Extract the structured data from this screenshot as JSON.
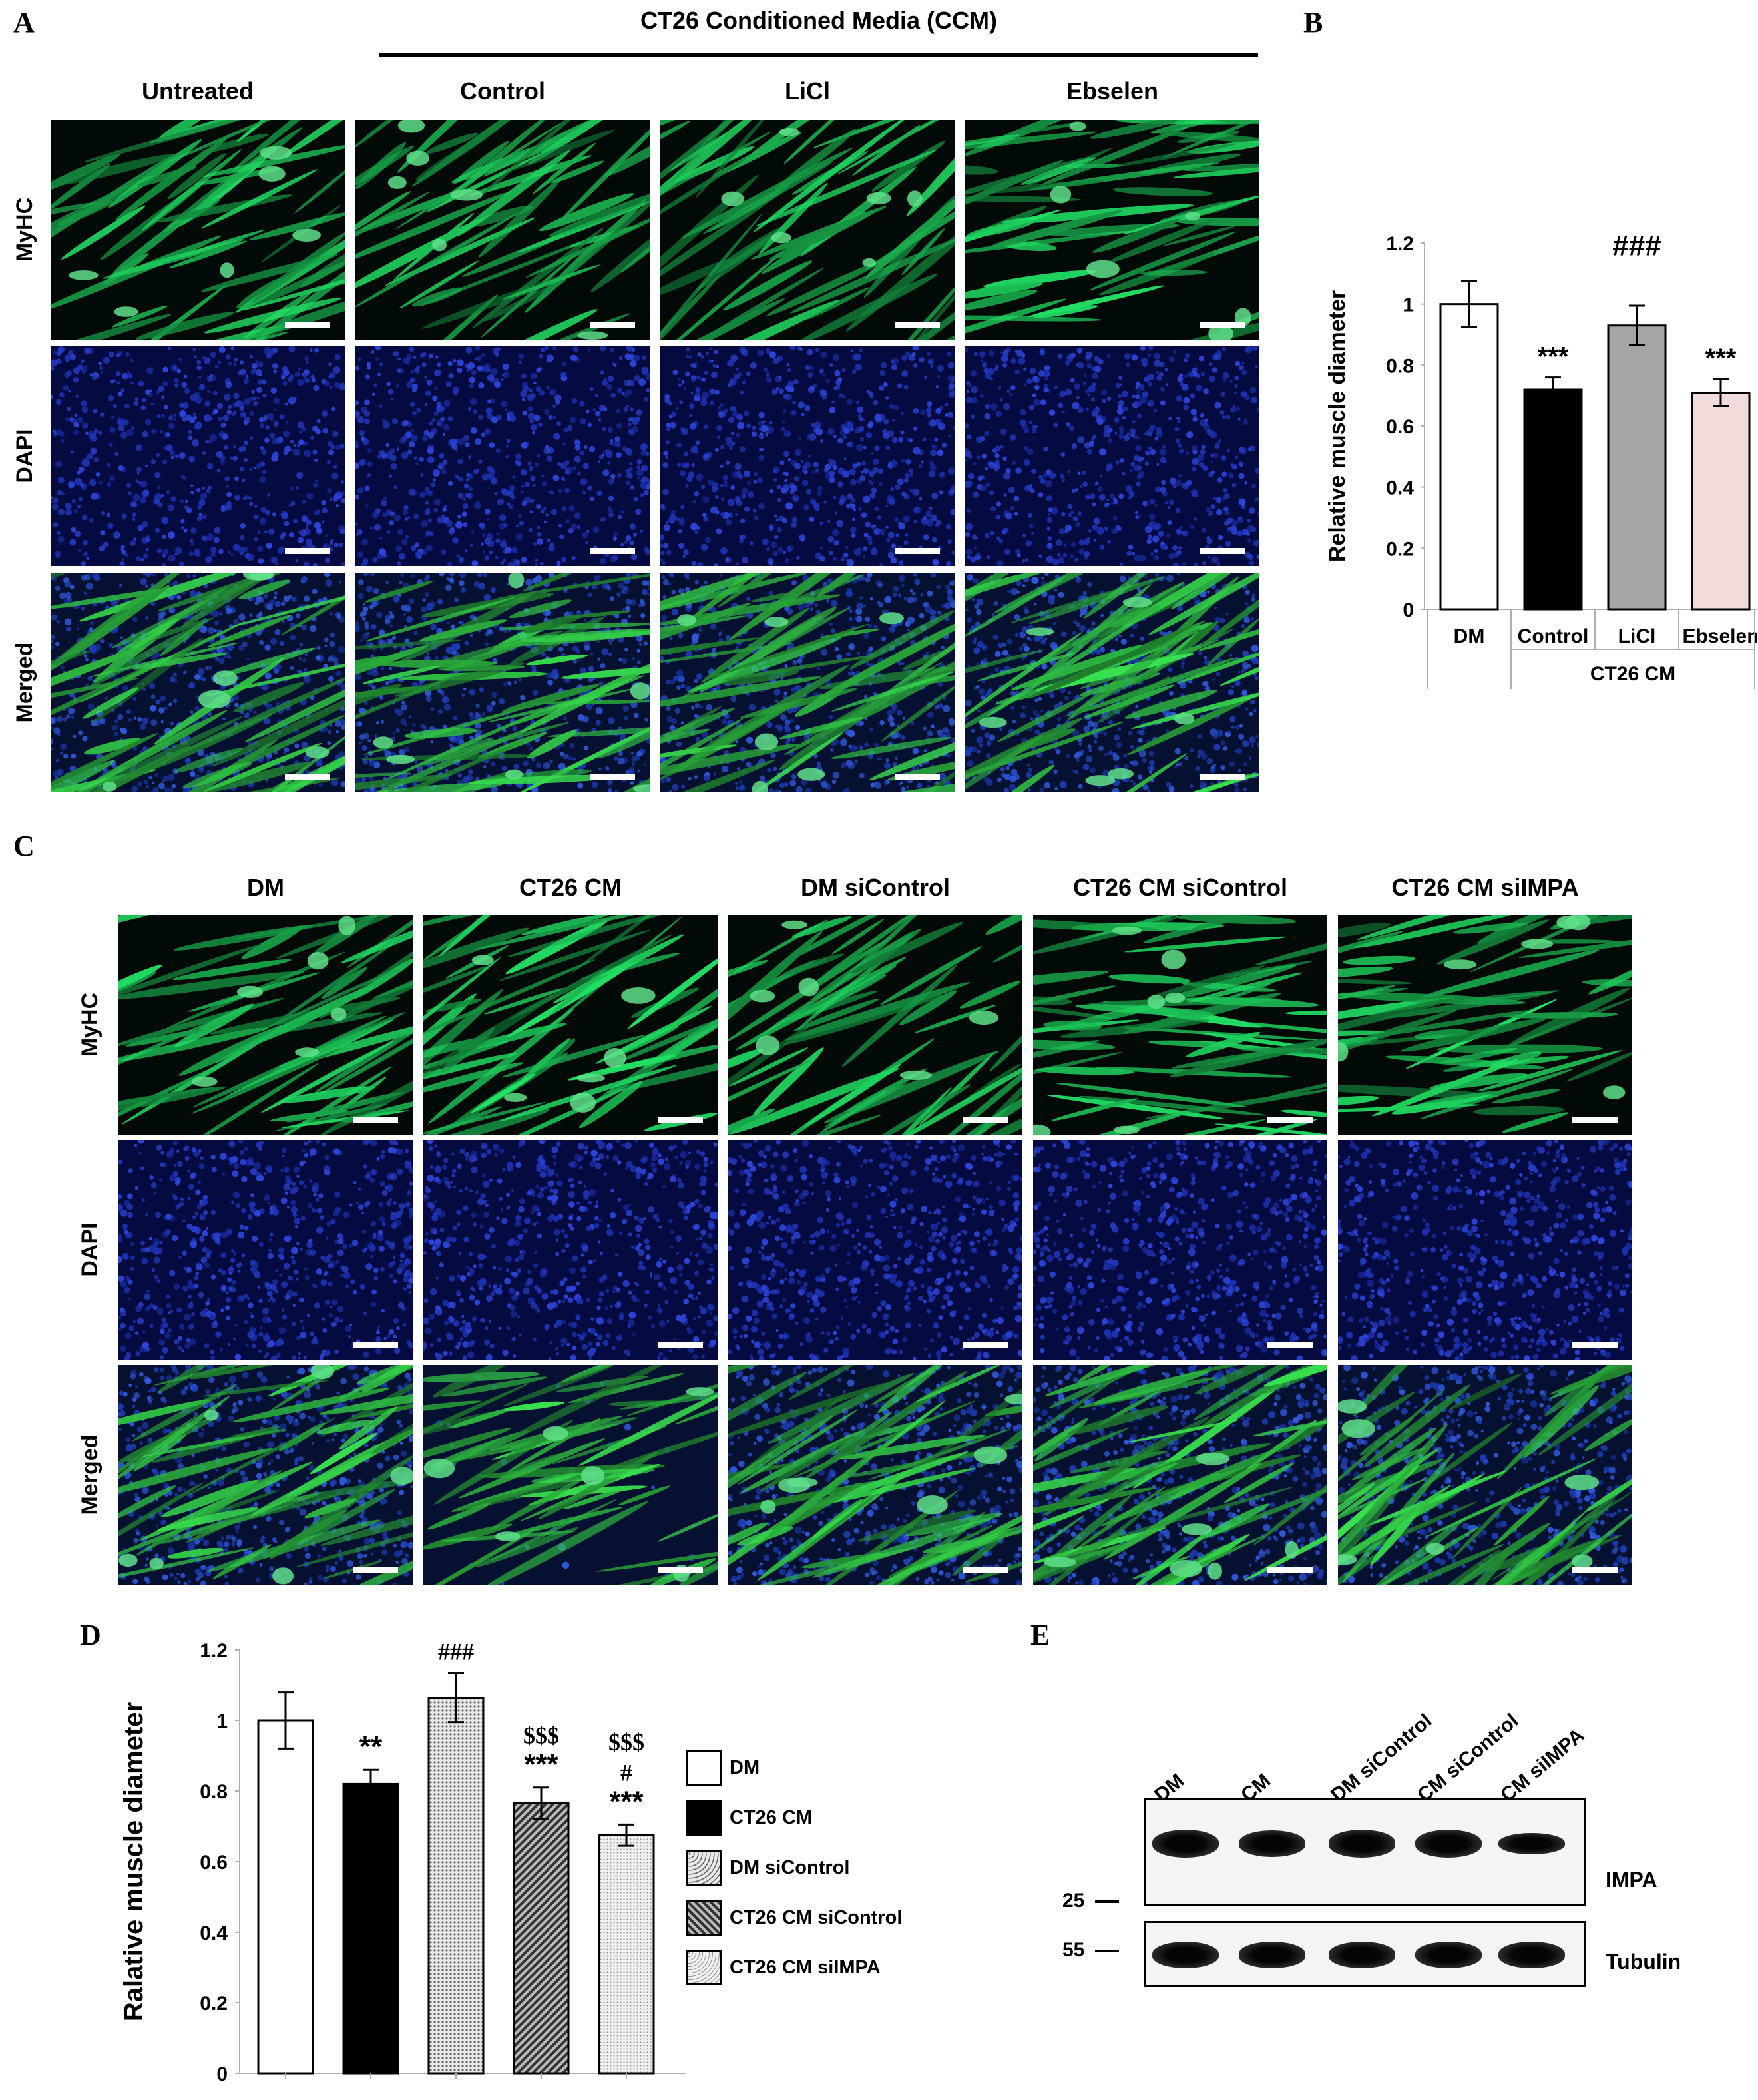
{
  "panel_letters": {
    "a": "A",
    "b": "B",
    "c": "C",
    "d": "D",
    "e": "E"
  },
  "panelA": {
    "group_title": "CT26 Conditioned Media (CCM)",
    "columns": [
      "Untreated",
      "Control",
      "LiCl",
      "Ebselen"
    ],
    "rows": [
      "MyHC",
      "DAPI",
      "Merged"
    ]
  },
  "panelC": {
    "columns": [
      "DM",
      "CT26 CM",
      "DM siControl",
      "CT26 CM siControl",
      "CT26 CM siIMPA"
    ],
    "rows": [
      "MyHC",
      "DAPI",
      "Merged"
    ]
  },
  "colors": {
    "myhc_green": "#1a8a3c",
    "dapi_blue": "#1a2fb8",
    "merged_green": "#2fa84a",
    "merged_blue": "#1f45c8",
    "bar_black": "#000000",
    "bar_gray": "#a6a6a6",
    "bar_pink": "#f2dcdb",
    "bar_white": "#ffffff"
  },
  "chart_data": [
    {
      "type": "bar",
      "panel": "B",
      "categories": [
        "DM",
        "Control",
        "LiCl",
        "Ebselen"
      ],
      "group_label": "CT26 CM",
      "values": [
        1.0,
        0.72,
        0.93,
        0.71
      ],
      "errors": [
        0.075,
        0.04,
        0.065,
        0.045
      ],
      "annotations": [
        "",
        "***",
        "###\n***",
        "***"
      ],
      "annotations_above": [
        "",
        "***",
        "###",
        "***"
      ],
      "ylabel": "Relative muscle diameter",
      "ylim": [
        0,
        1.2
      ],
      "yticks": [
        "0",
        "0.2",
        "0.4",
        "0.6",
        "0.8",
        "1",
        "1.2"
      ],
      "fills": [
        "white",
        "black",
        "gray",
        "pink"
      ]
    },
    {
      "type": "bar",
      "panel": "D",
      "categories": [
        "DM",
        "CT26 CM",
        "DM siControl",
        "CT26 CM siControl",
        "CT26 CM siIMPA"
      ],
      "values": [
        1.0,
        0.82,
        1.065,
        0.765,
        0.675
      ],
      "errors": [
        0.08,
        0.04,
        0.07,
        0.045,
        0.03
      ],
      "annotations": [
        [],
        [
          "**"
        ],
        [
          "###"
        ],
        [
          "$$$",
          "***"
        ],
        [
          "$$$",
          "#",
          "***"
        ]
      ],
      "ylabel": "Ralative muscle diameter",
      "ylim": [
        0,
        1.2
      ],
      "yticks": [
        "0",
        "0.2",
        "0.4",
        "0.6",
        "0.8",
        "1",
        "1.2"
      ],
      "legend": [
        "DM",
        "CT26 CM",
        "DM siControl",
        "CT26 CM siControl",
        "CT26 CM siIMPA"
      ]
    }
  ],
  "panelE": {
    "lanes": [
      "DM",
      "CM",
      "DM siControl",
      "CM siControl",
      "CM siIMPA"
    ],
    "bands": [
      "IMPA",
      "Tubulin"
    ],
    "markers": [
      "25",
      "55"
    ],
    "impa_intensity": [
      1.0,
      0.95,
      1.0,
      1.0,
      0.7
    ],
    "tubulin_intensity": [
      1.0,
      1.0,
      1.0,
      1.0,
      1.0
    ]
  }
}
